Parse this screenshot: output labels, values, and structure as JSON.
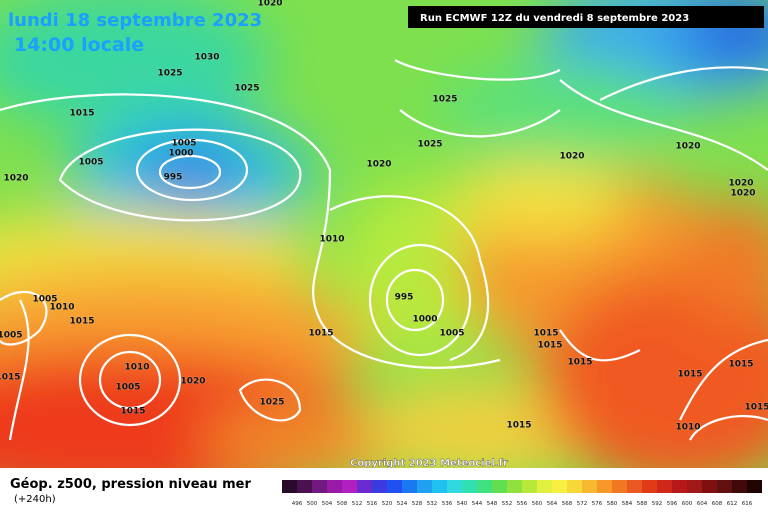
{
  "header": {
    "date": "lundi 18 septembre 2023",
    "time": "14:00 locale",
    "run": "Run ECMWF 12Z du vendredi 8 septembre 2023"
  },
  "map": {
    "isobar_labels": [
      1020,
      1030,
      1025,
      1025,
      1015,
      1005,
      1000,
      1005,
      995,
      1020,
      1020,
      1025,
      1025,
      1020,
      1020,
      1020,
      1020,
      1010,
      1005,
      1010,
      1015,
      1005,
      995,
      1000,
      1005,
      1015,
      1015,
      1015,
      1015,
      1010,
      1005,
      1020,
      1015,
      1025,
      1015,
      1015,
      1015,
      1015,
      1015,
      1010
    ],
    "copyright": "Copyright 2023 Meteociel.fr"
  },
  "footer": {
    "title": "Géop. z500, pression niveau mer",
    "lead": "(+240h)",
    "scale_labels": [
      496,
      500,
      504,
      508,
      512,
      516,
      520,
      524,
      528,
      532,
      536,
      540,
      544,
      548,
      552,
      556,
      560,
      564,
      568,
      572,
      576,
      580,
      584,
      588,
      592,
      596,
      600,
      604,
      608,
      612,
      616
    ]
  }
}
